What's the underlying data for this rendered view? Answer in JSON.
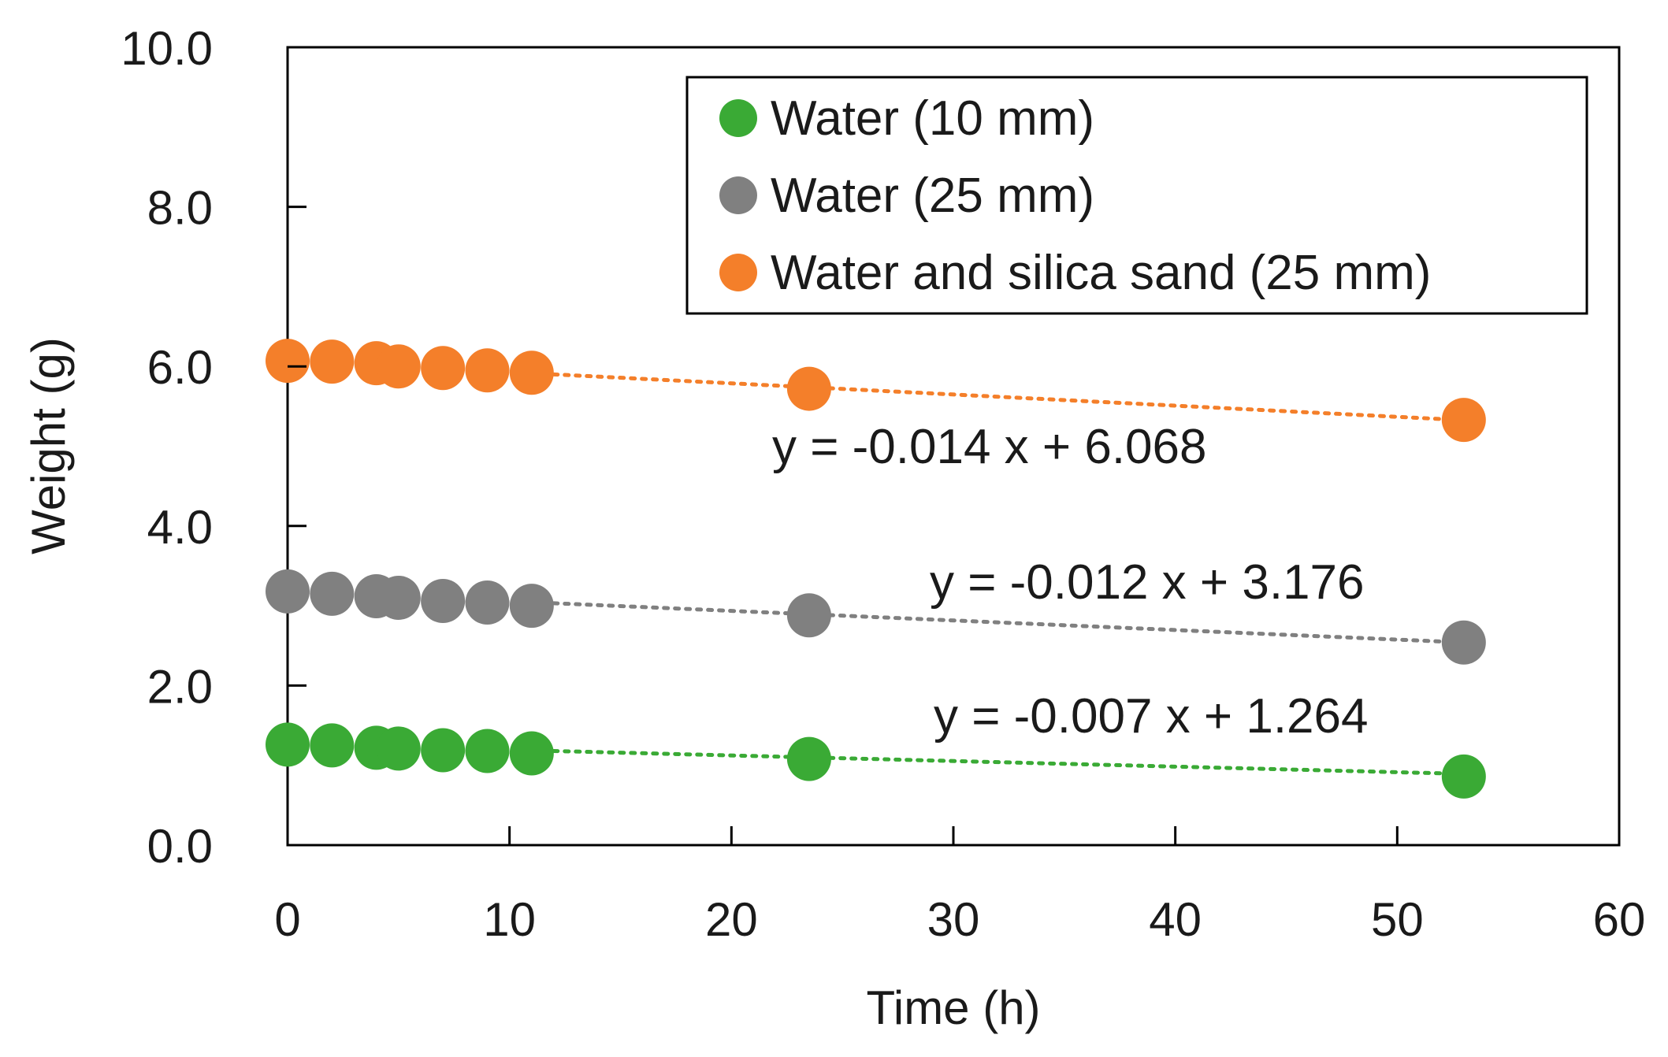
{
  "chart_data": {
    "type": "scatter",
    "title": "",
    "xlabel": "Time (h)",
    "ylabel": "Weight (g)",
    "xlim": [
      0,
      60
    ],
    "ylim": [
      0,
      10
    ],
    "x_ticks": [
      "0",
      "10",
      "20",
      "30",
      "40",
      "50",
      "60"
    ],
    "y_ticks": [
      "0.0",
      "2.0",
      "4.0",
      "6.0",
      "8.0",
      "10.0"
    ],
    "grid": false,
    "legend_position": "top-right",
    "series": [
      {
        "name": "Water (10 mm)",
        "color": "#3aaa35",
        "x": [
          0,
          2,
          4,
          5,
          7,
          9,
          11,
          23.5,
          53
        ],
        "y": [
          1.26,
          1.25,
          1.22,
          1.21,
          1.19,
          1.18,
          1.15,
          1.08,
          0.86
        ],
        "trendline": {
          "slope": -0.007,
          "intercept": 1.264,
          "label": "y = -0.007 x + 1.264",
          "from": 11,
          "to": 53
        }
      },
      {
        "name": "Water (25 mm)",
        "color": "#808080",
        "x": [
          0,
          2,
          4,
          5,
          7,
          9,
          11,
          23.5,
          53
        ],
        "y": [
          3.18,
          3.15,
          3.12,
          3.1,
          3.06,
          3.04,
          3.0,
          2.88,
          2.54
        ],
        "trendline": {
          "slope": -0.012,
          "intercept": 3.176,
          "label": "y = -0.012 x + 3.176",
          "from": 11,
          "to": 53
        }
      },
      {
        "name": "Water and silica sand (25 mm)",
        "color": "#f47f2a",
        "x": [
          0,
          2,
          4,
          5,
          7,
          9,
          11,
          23.5,
          53
        ],
        "y": [
          6.07,
          6.06,
          6.04,
          6.0,
          5.98,
          5.95,
          5.92,
          5.72,
          5.33
        ],
        "trendline": {
          "slope": -0.014,
          "intercept": 6.068,
          "label": "y = -0.014 x + 6.068",
          "from": 11,
          "to": 53
        }
      }
    ]
  }
}
